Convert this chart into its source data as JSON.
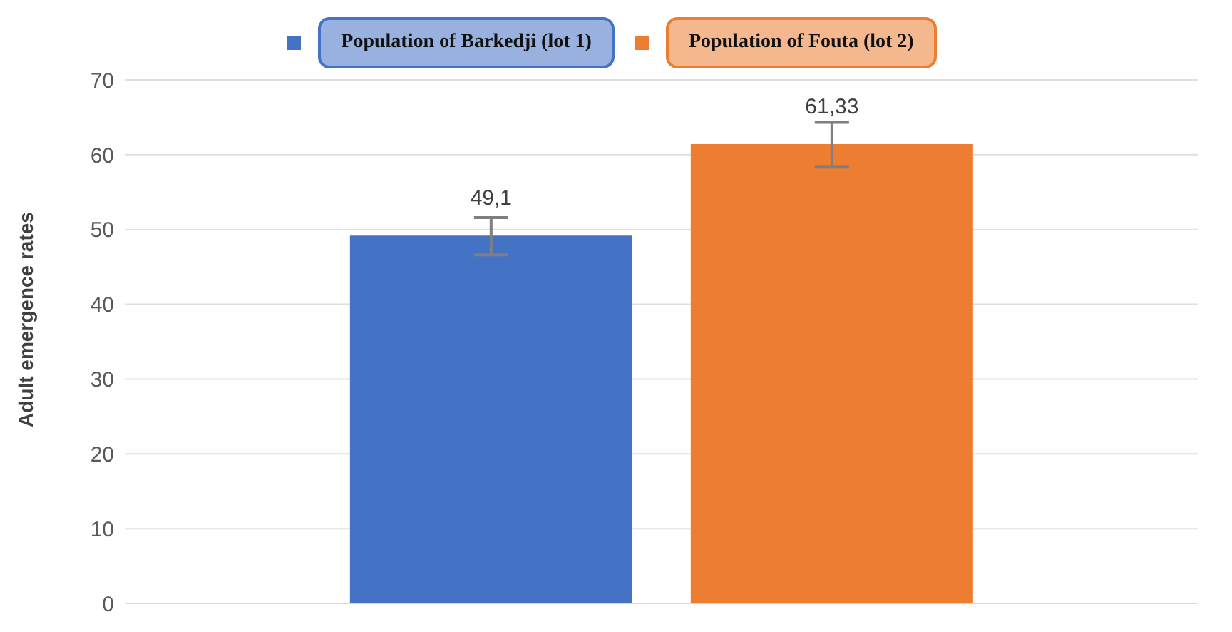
{
  "chart_data": {
    "type": "bar",
    "ylabel": "Adult emergence rates",
    "categories": [
      null
    ],
    "series": [
      {
        "name": "Population of Barkedji (lot 1)",
        "color": "#4472c4",
        "values": [
          49.1
        ],
        "errors": [
          2.5
        ],
        "value_labels": [
          "49,1"
        ]
      },
      {
        "name": "Population of Fouta (lot 2)",
        "color": "#ed7d31",
        "values": [
          61.33
        ],
        "errors": [
          3
        ],
        "value_labels": [
          "61,33"
        ]
      }
    ],
    "ylim": [
      0,
      70
    ],
    "yticks": [
      0,
      10,
      20,
      30,
      40,
      50,
      60,
      70
    ],
    "grid": "y",
    "legend": "top"
  }
}
